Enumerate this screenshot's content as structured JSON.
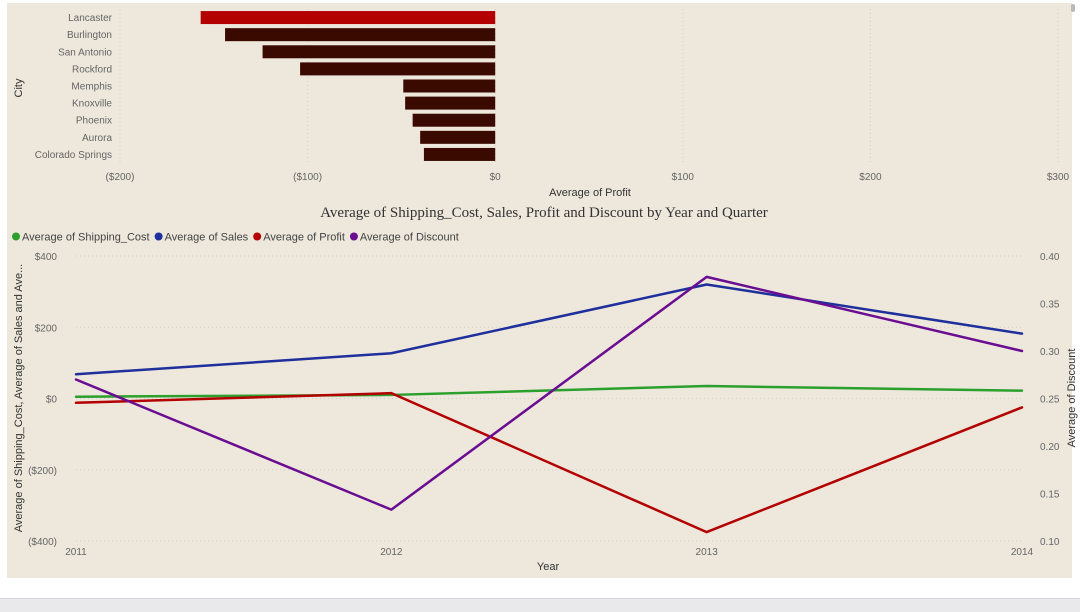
{
  "chart_data": [
    {
      "type": "bar",
      "orientation": "horizontal",
      "ylabel": "City",
      "xlabel": "Average of Profit",
      "categories": [
        "Lancaster",
        "Burlington",
        "San Antonio",
        "Rockford",
        "Memphis",
        "Knoxville",
        "Phoenix",
        "Aurora",
        "Colorado Springs"
      ],
      "values": [
        -157,
        -144,
        -124,
        -104,
        -49,
        -48,
        -44,
        -40,
        -38
      ],
      "highlight_index": 0,
      "colors": {
        "highlight": "#b30000",
        "default": "#3a0a00"
      },
      "xlim": [
        -200,
        300
      ],
      "xticks": [
        -200,
        -100,
        0,
        100,
        200,
        300
      ],
      "xtick_labels": [
        "($200)",
        "($100)",
        "$0",
        "$100",
        "$200",
        "$300"
      ],
      "grid": true
    },
    {
      "type": "line",
      "title": "Average of Shipping_Cost, Sales, Profit and Discount by Year and Quarter",
      "xlabel": "Year",
      "ylabel": "Average of Shipping_Cost, Average of Sales and Ave...",
      "y2label": "Average of Discount",
      "x": [
        "2011",
        "2012",
        "2013",
        "2014"
      ],
      "ylim": [
        -400,
        400
      ],
      "yticks": [
        -400,
        -200,
        0,
        200,
        400
      ],
      "ytick_labels": [
        "($400)",
        "($200)",
        "$0",
        "$200",
        "$400"
      ],
      "y2lim": [
        0.1,
        0.4
      ],
      "y2ticks": [
        0.1,
        0.15,
        0.2,
        0.25,
        0.3,
        0.35,
        0.4
      ],
      "y2tick_labels": [
        "0.10",
        "0.15",
        "0.20",
        "0.25",
        "0.30",
        "0.35",
        "0.40"
      ],
      "legend_position": "top-left",
      "grid": true,
      "series": [
        {
          "name": "Average of Shipping_Cost",
          "color": "#2ca02c",
          "axis": "left",
          "values": [
            5,
            10,
            35,
            22
          ]
        },
        {
          "name": "Average of Sales",
          "color": "#1f2f9c",
          "axis": "left",
          "values": [
            68,
            127,
            320,
            182
          ]
        },
        {
          "name": "Average of Profit",
          "color": "#b30000",
          "axis": "left",
          "values": [
            -12,
            15,
            -375,
            -25
          ]
        },
        {
          "name": "Average of Discount",
          "color": "#6a0d91",
          "axis": "right",
          "values": [
            0.27,
            0.133,
            0.378,
            0.3
          ]
        }
      ]
    }
  ]
}
